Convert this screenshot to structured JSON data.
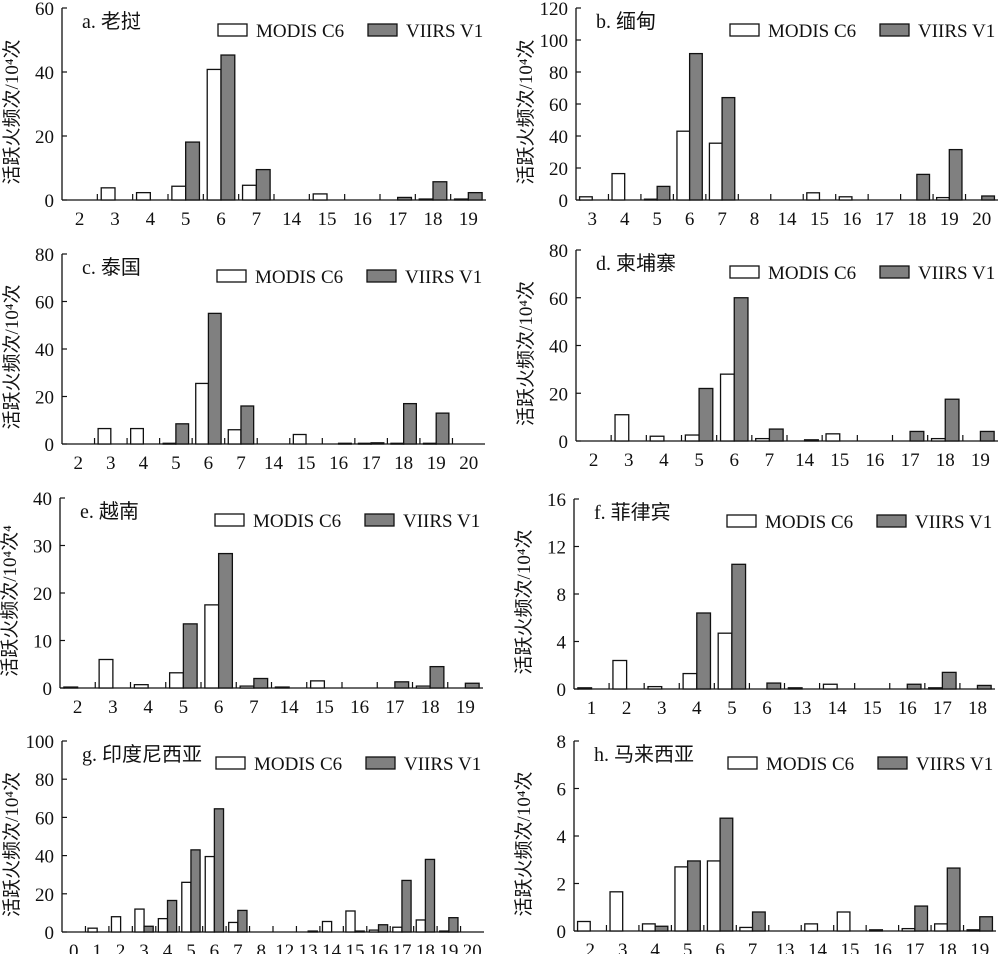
{
  "legend": {
    "modis": "MODIS C6",
    "viirs": "VIIRS V1"
  },
  "colors": {
    "modis_fill": "#ffffff",
    "viirs_fill": "#808080",
    "stroke": "#111111"
  },
  "chart_data": [
    {
      "type": "bar",
      "id": "a",
      "title": "a. 老挝",
      "ylabel": "活跃火频次/10⁴次",
      "xlabel": "",
      "ylim": [
        0,
        60
      ],
      "yticks": [
        0,
        20,
        40,
        60
      ],
      "legend_position": "top-right",
      "categories": [
        "2",
        "3",
        "4",
        "5",
        "6",
        "7",
        "14",
        "15",
        "16",
        "17",
        "18",
        "19"
      ],
      "series": [
        {
          "name": "MODIS C6",
          "values": [
            0,
            3.8,
            2.3,
            4.3,
            40.8,
            4.6,
            0,
            1.9,
            0,
            0,
            0.3,
            0.3
          ]
        },
        {
          "name": "VIIRS V1",
          "values": [
            0,
            0,
            0,
            18.1,
            45.3,
            9.5,
            0,
            0,
            0,
            0.8,
            5.7,
            2.3
          ]
        }
      ]
    },
    {
      "type": "bar",
      "id": "b",
      "title": "b. 缅甸",
      "ylabel": "活跃火频次/10⁴次",
      "xlabel": "",
      "ylim": [
        0,
        120
      ],
      "yticks": [
        0,
        20,
        40,
        60,
        80,
        100,
        120
      ],
      "legend_position": "top-right",
      "categories": [
        "3",
        "4",
        "5",
        "6",
        "7",
        "8",
        "14",
        "15",
        "16",
        "17",
        "18",
        "19",
        "20"
      ],
      "series": [
        {
          "name": "MODIS C6",
          "values": [
            2,
            16.5,
            0.5,
            43,
            35.5,
            0,
            0,
            4.5,
            2,
            0,
            0,
            1.5,
            0
          ]
        },
        {
          "name": "VIIRS V1",
          "values": [
            0,
            0,
            8.5,
            91.5,
            64,
            0,
            0,
            0,
            0,
            0,
            16,
            31.5,
            2.5
          ]
        }
      ]
    },
    {
      "type": "bar",
      "id": "c",
      "title": "c. 泰国",
      "ylabel": "活跃火频次/10⁴次",
      "xlabel": "",
      "ylim": [
        0,
        80
      ],
      "yticks": [
        0,
        20,
        40,
        60,
        80
      ],
      "legend_position": "top-right",
      "categories": [
        "2",
        "3",
        "4",
        "5",
        "6",
        "7",
        "14",
        "15",
        "16",
        "17",
        "18",
        "19",
        "20"
      ],
      "series": [
        {
          "name": "MODIS C6",
          "values": [
            0,
            6.5,
            6.5,
            0.3,
            25.5,
            6,
            0,
            4,
            0,
            0.3,
            0.3,
            0.3,
            0
          ]
        },
        {
          "name": "VIIRS V1",
          "values": [
            0,
            0,
            0,
            8.5,
            55,
            16,
            0,
            0,
            0.3,
            0.5,
            17,
            13,
            0
          ]
        }
      ]
    },
    {
      "type": "bar",
      "id": "d",
      "title": "d. 柬埔寨",
      "ylabel": "活跃火频次/10⁴次",
      "xlabel": "",
      "ylim": [
        0,
        80
      ],
      "yticks": [
        0,
        20,
        40,
        60,
        80
      ],
      "legend_position": "top-right",
      "categories": [
        "2",
        "3",
        "4",
        "5",
        "6",
        "7",
        "14",
        "15",
        "16",
        "17",
        "18",
        "19"
      ],
      "series": [
        {
          "name": "MODIS C6",
          "values": [
            0,
            11,
            2,
            2.5,
            28,
            1,
            0,
            3,
            0,
            0,
            1,
            0
          ]
        },
        {
          "name": "VIIRS V1",
          "values": [
            0,
            0,
            0,
            22,
            60,
            5,
            0.5,
            0,
            0,
            4,
            17.5,
            4
          ]
        }
      ]
    },
    {
      "type": "bar",
      "id": "e",
      "title": "e. 越南",
      "ylabel": "活跃火频次/10⁴次⁴",
      "xlabel": "",
      "ylim": [
        0,
        40
      ],
      "yticks": [
        0,
        10,
        20,
        30,
        40
      ],
      "legend_position": "top-right",
      "categories": [
        "2",
        "3",
        "4",
        "5",
        "6",
        "7",
        "14",
        "15",
        "16",
        "17",
        "18",
        "19"
      ],
      "series": [
        {
          "name": "MODIS C6",
          "values": [
            0.2,
            6,
            0.7,
            3.2,
            17.5,
            0.4,
            0.2,
            1.5,
            0,
            0,
            0.4,
            0
          ]
        },
        {
          "name": "VIIRS V1",
          "values": [
            0,
            0,
            0,
            13.5,
            28.3,
            2,
            0,
            0,
            0,
            1.3,
            4.5,
            1
          ]
        }
      ]
    },
    {
      "type": "bar",
      "id": "f",
      "title": "f. 菲律宾",
      "ylabel": "活跃火频次/10⁴次",
      "xlabel": "",
      "ylim": [
        0,
        16
      ],
      "yticks": [
        0,
        4,
        8,
        12,
        16
      ],
      "legend_position": "top-right",
      "categories": [
        "1",
        "2",
        "3",
        "4",
        "5",
        "6",
        "13",
        "14",
        "15",
        "16",
        "17",
        "18"
      ],
      "series": [
        {
          "name": "MODIS C6",
          "values": [
            0.1,
            2.4,
            0.2,
            1.3,
            4.7,
            0,
            0.1,
            0.4,
            0,
            0,
            0.1,
            0
          ]
        },
        {
          "name": "VIIRS V1",
          "values": [
            0,
            0,
            0,
            6.4,
            10.5,
            0.5,
            0,
            0,
            0,
            0.4,
            1.4,
            0.3
          ]
        }
      ]
    },
    {
      "type": "bar",
      "id": "g",
      "title": "g. 印度尼西亚",
      "ylabel": "活跃火频次/10⁴次",
      "xlabel": "",
      "ylim": [
        0,
        100
      ],
      "yticks": [
        0,
        20,
        40,
        60,
        80,
        100
      ],
      "legend_position": "top-right",
      "categories": [
        "0",
        "1",
        "2",
        "3",
        "4",
        "5",
        "6",
        "7",
        "8",
        "12",
        "13",
        "14",
        "15",
        "16",
        "17",
        "18",
        "19",
        "20"
      ],
      "series": [
        {
          "name": "MODIS C6",
          "values": [
            0,
            2,
            8,
            12,
            7,
            26,
            39.5,
            5,
            0,
            0,
            0,
            5.5,
            11,
            1,
            2.5,
            6.3,
            0.5,
            0
          ]
        },
        {
          "name": "VIIRS V1",
          "values": [
            0,
            0,
            0,
            3,
            16.5,
            43,
            64.5,
            11.3,
            0,
            0,
            0.5,
            0,
            0.5,
            3.8,
            27,
            38,
            7.5,
            0
          ]
        }
      ]
    },
    {
      "type": "bar",
      "id": "h",
      "title": "h. 马来西亚",
      "ylabel": "活跃火频次/10⁴次",
      "xlabel": "",
      "ylim": [
        0,
        8
      ],
      "yticks": [
        0,
        2,
        4,
        6,
        8
      ],
      "legend_position": "top-right",
      "categories": [
        "2",
        "3",
        "4",
        "5",
        "6",
        "7",
        "13",
        "14",
        "15",
        "16",
        "17",
        "18",
        "19"
      ],
      "series": [
        {
          "name": "MODIS C6",
          "values": [
            0.4,
            1.65,
            0.3,
            2.7,
            2.95,
            0.15,
            0,
            0.3,
            0.8,
            0.05,
            0.1,
            0.3,
            0.05
          ]
        },
        {
          "name": "VIIRS V1",
          "values": [
            0,
            0,
            0.2,
            2.95,
            4.75,
            0.8,
            0,
            0,
            0,
            0,
            1.05,
            2.65,
            0.6
          ]
        }
      ]
    }
  ]
}
